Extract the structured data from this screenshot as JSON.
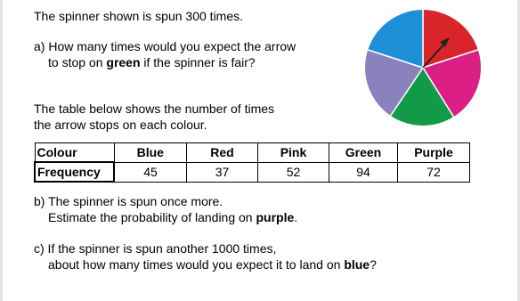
{
  "intro": "The spinner shown is spun 300 times.",
  "question_a": {
    "line1": "a) How many times would you expect the arrow",
    "line2_start": "to stop on ",
    "line2_bold": "green",
    "line2_end": " if the spinner is fair?"
  },
  "table_intro": {
    "line1": "The table below shows the number of times",
    "line2": "the arrow stops on each colour."
  },
  "table": {
    "header": [
      "Colour",
      "Blue",
      "Red",
      "Pink",
      "Green",
      "Purple"
    ],
    "rows": [
      [
        "Frequency",
        45,
        37,
        52,
        94,
        72
      ]
    ]
  },
  "question_b": {
    "line1": "b) The spinner is spun once more.",
    "line2_start": "Estimate the probability of landing on ",
    "line2_bold": "purple",
    "line2_end": "."
  },
  "question_c": {
    "line1": "c) If the spinner is spun another 1000 times,",
    "line2_start": "about how many times would you expect it to land on ",
    "line2_bold": "blue",
    "line2_end": "?"
  }
}
